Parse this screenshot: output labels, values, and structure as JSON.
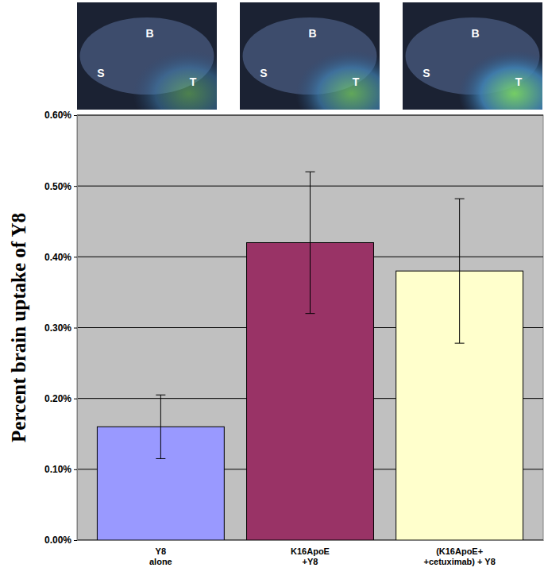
{
  "chart_data": {
    "type": "bar",
    "y_label": "Percent brain uptake of Y8",
    "categories": [
      "Y8\nalone",
      "K16ApoE\n+Y8",
      "(K16ApoE+\n+cetuximab) + Y8"
    ],
    "values": [
      0.16,
      0.42,
      0.38
    ],
    "errors": [
      0.045,
      0.1,
      0.102
    ],
    "colors": [
      "#9999ff",
      "#993366",
      "#ffffcc"
    ],
    "ylim": [
      0,
      0.6
    ],
    "yticks": [
      {
        "value": 0,
        "label": "0.00%"
      },
      {
        "value": 0.1,
        "label": "0.10%"
      },
      {
        "value": 0.2,
        "label": "0.20%"
      },
      {
        "value": 0.3,
        "label": "0.30%"
      },
      {
        "value": 0.4,
        "label": "0.40%"
      },
      {
        "value": 0.5,
        "label": "0.50%"
      },
      {
        "value": 0.6,
        "label": "0.60%"
      }
    ],
    "grid": true,
    "annotations": [
      [
        "B",
        "S",
        "T"
      ],
      [
        "B",
        "S",
        "T"
      ],
      [
        "B",
        "S",
        "T"
      ]
    ]
  }
}
